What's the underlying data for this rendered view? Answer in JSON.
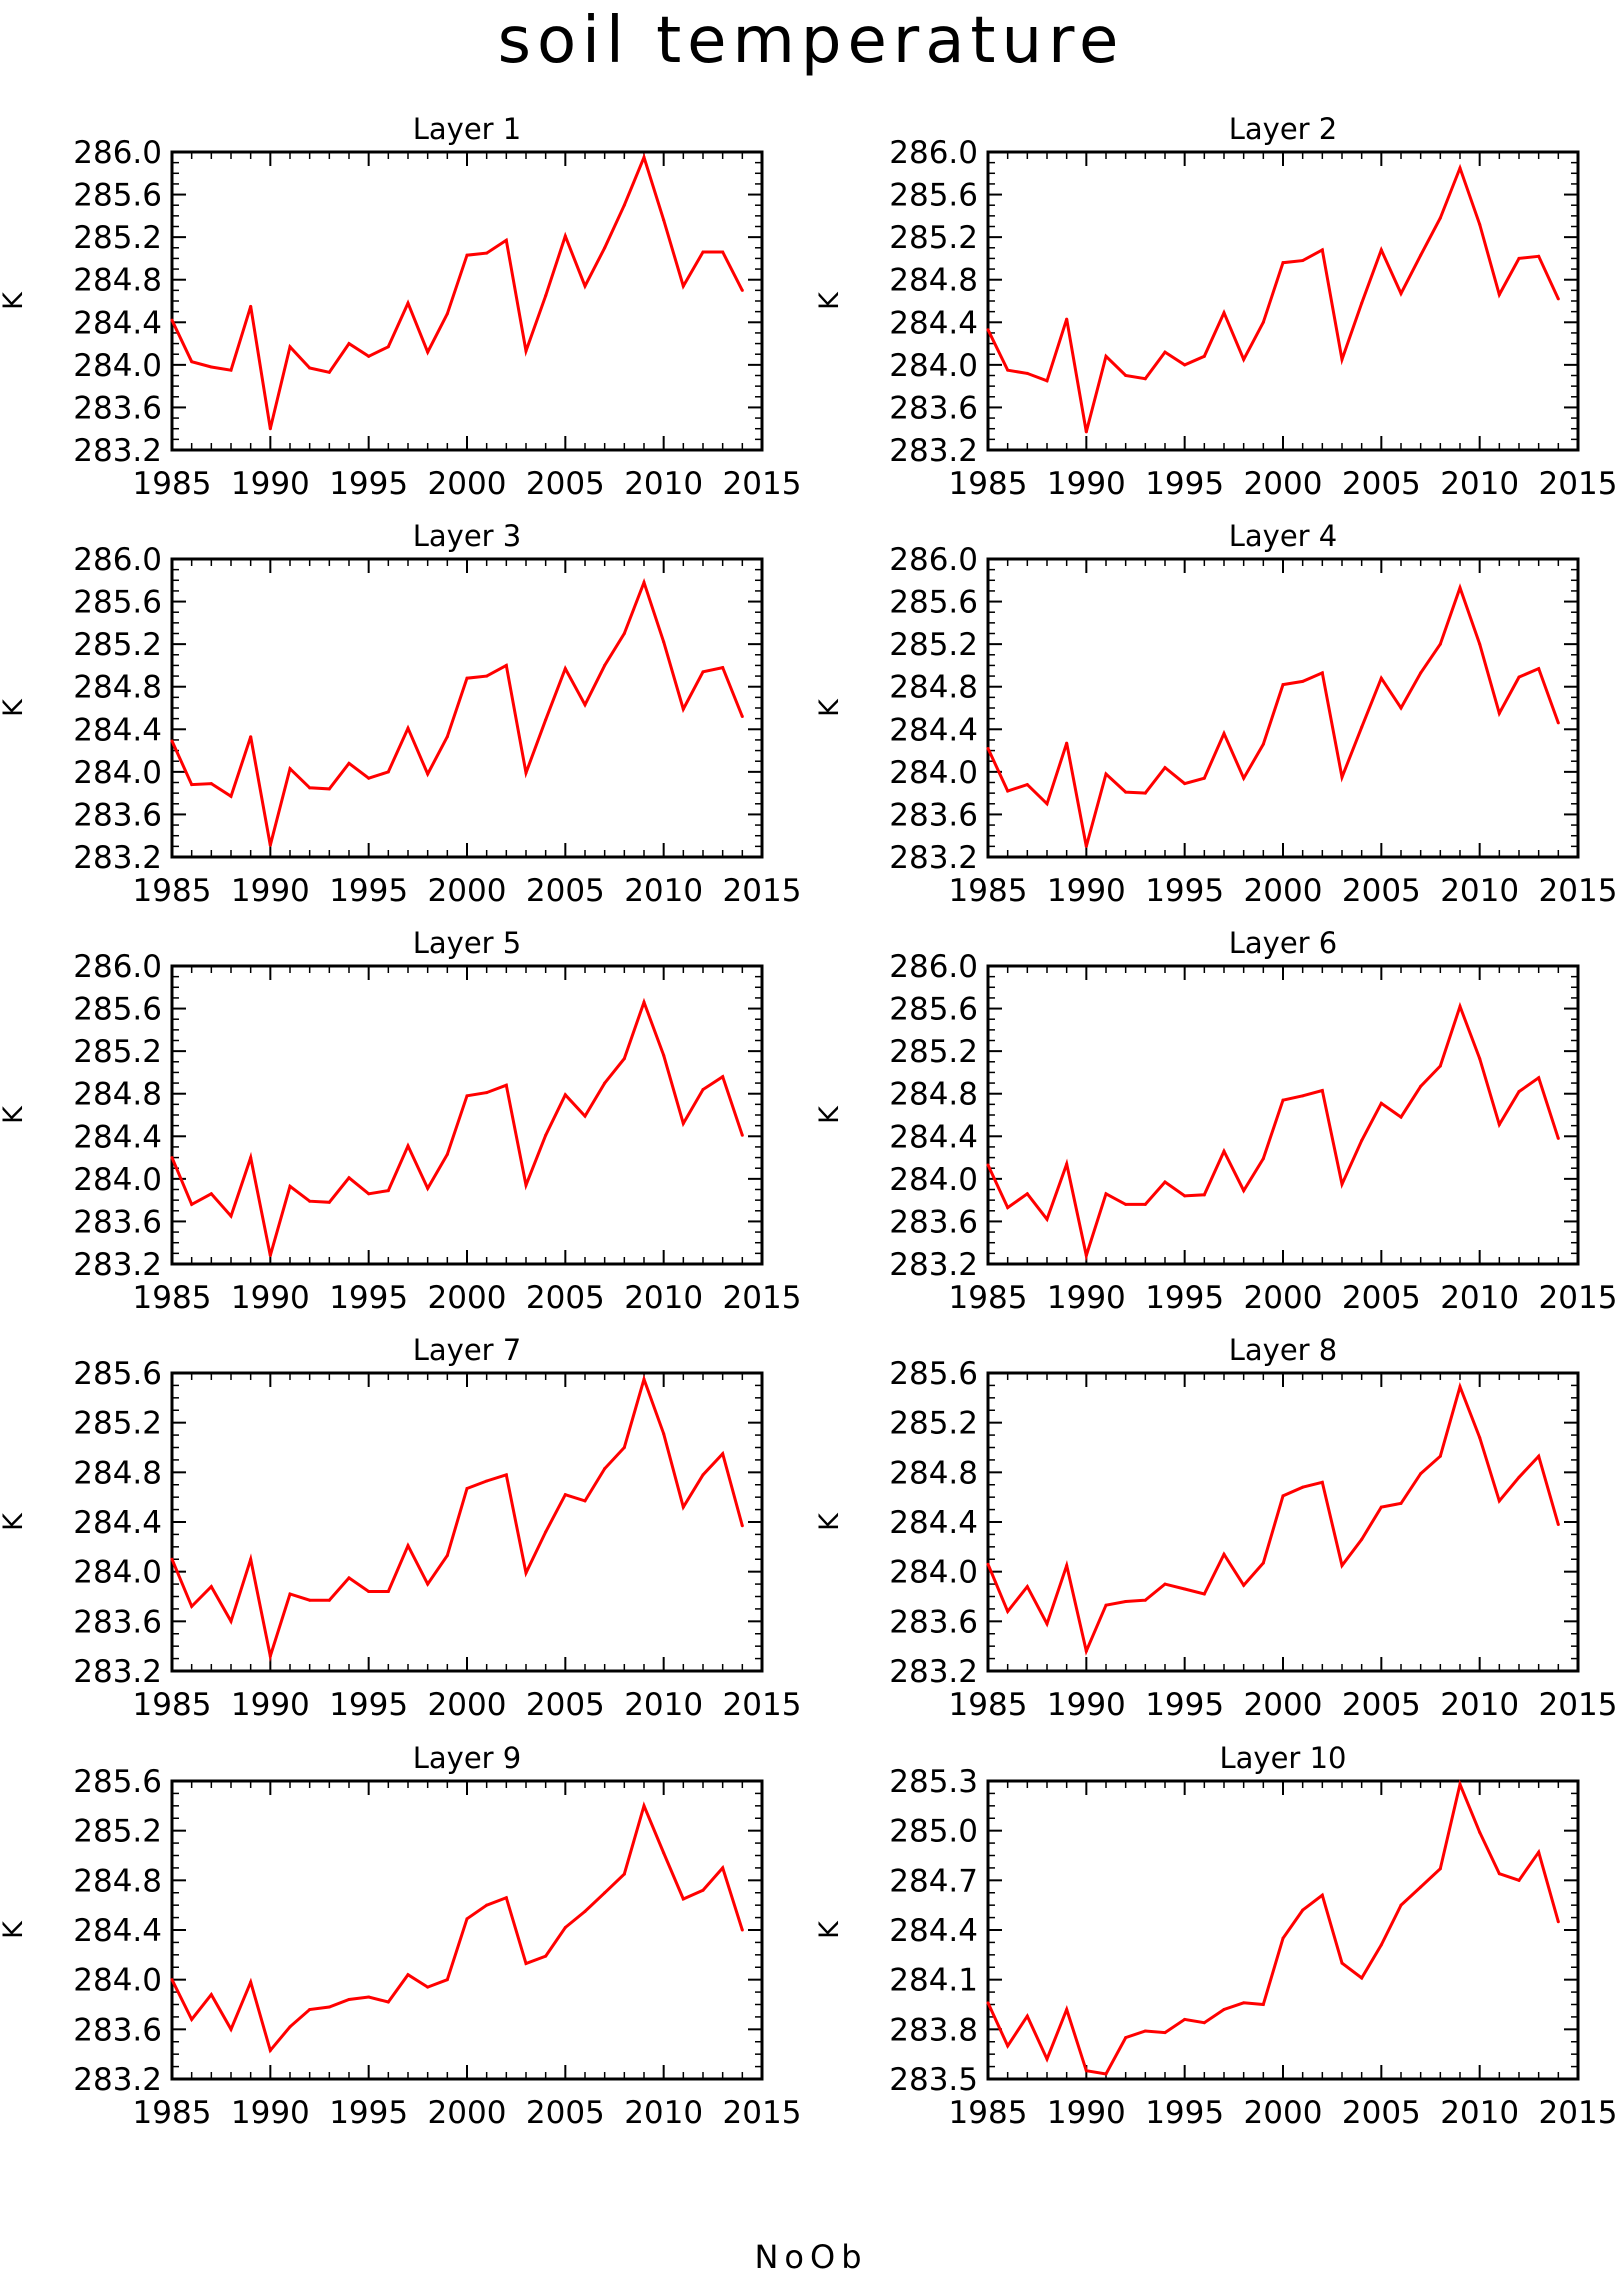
{
  "title": "soil temperature",
  "footer": "NoOb",
  "style": {
    "line_color": "#ff0000",
    "axis_color": "#000000"
  },
  "chart_data": [
    {
      "type": "line",
      "title": "Layer 1",
      "ylabel": "K",
      "xlim": [
        1985,
        2015
      ],
      "xticks": [
        1985,
        1990,
        1995,
        2000,
        2005,
        2010,
        2015
      ],
      "ylim": [
        283.2,
        286.0
      ],
      "yticks": [
        283.2,
        283.6,
        284.0,
        284.4,
        284.8,
        285.2,
        285.6,
        286.0
      ],
      "ytick_decimals": 1,
      "x": [
        1985,
        1986,
        1987,
        1988,
        1989,
        1990,
        1991,
        1992,
        1993,
        1994,
        1995,
        1996,
        1997,
        1998,
        1999,
        2000,
        2001,
        2002,
        2003,
        2004,
        2005,
        2006,
        2007,
        2008,
        2009,
        2010,
        2011,
        2012,
        2013,
        2014
      ],
      "series": [
        {
          "values": [
            284.42,
            284.03,
            283.98,
            283.95,
            284.55,
            283.4,
            284.17,
            283.97,
            283.93,
            284.2,
            284.08,
            284.17,
            284.58,
            284.12,
            284.48,
            285.03,
            285.05,
            285.17,
            284.13,
            284.65,
            285.21,
            284.74,
            285.1,
            285.5,
            285.95,
            285.36,
            284.74,
            285.06,
            285.06,
            284.7
          ]
        }
      ]
    },
    {
      "type": "line",
      "title": "Layer 2",
      "ylabel": "K",
      "xlim": [
        1985,
        2015
      ],
      "xticks": [
        1985,
        1990,
        1995,
        2000,
        2005,
        2010,
        2015
      ],
      "ylim": [
        283.2,
        286.0
      ],
      "yticks": [
        283.2,
        283.6,
        284.0,
        284.4,
        284.8,
        285.2,
        285.6,
        286.0
      ],
      "ytick_decimals": 1,
      "x": [
        1985,
        1986,
        1987,
        1988,
        1989,
        1990,
        1991,
        1992,
        1993,
        1994,
        1995,
        1996,
        1997,
        1998,
        1999,
        2000,
        2001,
        2002,
        2003,
        2004,
        2005,
        2006,
        2007,
        2008,
        2009,
        2010,
        2011,
        2012,
        2013,
        2014
      ],
      "series": [
        {
          "values": [
            284.33,
            283.95,
            283.92,
            283.85,
            284.43,
            283.37,
            284.08,
            283.9,
            283.87,
            284.12,
            284.0,
            284.08,
            284.49,
            284.05,
            284.4,
            284.96,
            284.98,
            285.08,
            284.05,
            284.58,
            285.08,
            284.67,
            285.03,
            285.38,
            285.85,
            285.32,
            284.66,
            285.0,
            285.02,
            284.62
          ]
        }
      ]
    },
    {
      "type": "line",
      "title": "Layer 3",
      "ylabel": "K",
      "xlim": [
        1985,
        2015
      ],
      "xticks": [
        1985,
        1990,
        1995,
        2000,
        2005,
        2010,
        2015
      ],
      "ylim": [
        283.2,
        286.0
      ],
      "yticks": [
        283.2,
        283.6,
        284.0,
        284.4,
        284.8,
        285.2,
        285.6,
        286.0
      ],
      "ytick_decimals": 1,
      "x": [
        1985,
        1986,
        1987,
        1988,
        1989,
        1990,
        1991,
        1992,
        1993,
        1994,
        1995,
        1996,
        1997,
        1998,
        1999,
        2000,
        2001,
        2002,
        2003,
        2004,
        2005,
        2006,
        2007,
        2008,
        2009,
        2010,
        2011,
        2012,
        2013,
        2014
      ],
      "series": [
        {
          "values": [
            284.29,
            283.88,
            283.89,
            283.77,
            284.33,
            283.31,
            284.03,
            283.85,
            283.84,
            284.08,
            283.94,
            284.0,
            284.41,
            283.98,
            284.33,
            284.88,
            284.9,
            285.0,
            283.99,
            284.49,
            284.97,
            284.63,
            285.0,
            285.3,
            285.78,
            285.22,
            284.59,
            284.94,
            284.98,
            284.52
          ]
        }
      ]
    },
    {
      "type": "line",
      "title": "Layer 4",
      "ylabel": "K",
      "xlim": [
        1985,
        2015
      ],
      "xticks": [
        1985,
        1990,
        1995,
        2000,
        2005,
        2010,
        2015
      ],
      "ylim": [
        283.2,
        286.0
      ],
      "yticks": [
        283.2,
        283.6,
        284.0,
        284.4,
        284.8,
        285.2,
        285.6,
        286.0
      ],
      "ytick_decimals": 1,
      "x": [
        1985,
        1986,
        1987,
        1988,
        1989,
        1990,
        1991,
        1992,
        1993,
        1994,
        1995,
        1996,
        1997,
        1998,
        1999,
        2000,
        2001,
        2002,
        2003,
        2004,
        2005,
        2006,
        2007,
        2008,
        2009,
        2010,
        2011,
        2012,
        2013,
        2014
      ],
      "series": [
        {
          "values": [
            284.22,
            283.82,
            283.88,
            283.7,
            284.27,
            283.3,
            283.98,
            283.81,
            283.8,
            284.04,
            283.89,
            283.94,
            284.36,
            283.94,
            284.26,
            284.82,
            284.85,
            284.93,
            283.95,
            284.42,
            284.88,
            284.6,
            284.93,
            285.2,
            285.73,
            285.2,
            284.55,
            284.89,
            284.97,
            284.46
          ]
        }
      ]
    },
    {
      "type": "line",
      "title": "Layer 5",
      "ylabel": "K",
      "xlim": [
        1985,
        2015
      ],
      "xticks": [
        1985,
        1990,
        1995,
        2000,
        2005,
        2010,
        2015
      ],
      "ylim": [
        283.2,
        286.0
      ],
      "yticks": [
        283.2,
        283.6,
        284.0,
        284.4,
        284.8,
        285.2,
        285.6,
        286.0
      ],
      "ytick_decimals": 1,
      "x": [
        1985,
        1986,
        1987,
        1988,
        1989,
        1990,
        1991,
        1992,
        1993,
        1994,
        1995,
        1996,
        1997,
        1998,
        1999,
        2000,
        2001,
        2002,
        2003,
        2004,
        2005,
        2006,
        2007,
        2008,
        2009,
        2010,
        2011,
        2012,
        2013,
        2014
      ],
      "series": [
        {
          "values": [
            284.2,
            283.76,
            283.86,
            283.65,
            284.2,
            283.28,
            283.93,
            283.79,
            283.78,
            284.01,
            283.86,
            283.89,
            284.31,
            283.91,
            284.23,
            284.78,
            284.81,
            284.88,
            283.94,
            284.41,
            284.79,
            284.59,
            284.9,
            285.13,
            285.66,
            285.16,
            284.52,
            284.84,
            284.96,
            284.41
          ]
        }
      ]
    },
    {
      "type": "line",
      "title": "Layer 6",
      "ylabel": "K",
      "xlim": [
        1985,
        2015
      ],
      "xticks": [
        1985,
        1990,
        1995,
        2000,
        2005,
        2010,
        2015
      ],
      "ylim": [
        283.2,
        286.0
      ],
      "yticks": [
        283.2,
        283.6,
        284.0,
        284.4,
        284.8,
        285.2,
        285.6,
        286.0
      ],
      "ytick_decimals": 1,
      "x": [
        1985,
        1986,
        1987,
        1988,
        1989,
        1990,
        1991,
        1992,
        1993,
        1994,
        1995,
        1996,
        1997,
        1998,
        1999,
        2000,
        2001,
        2002,
        2003,
        2004,
        2005,
        2006,
        2007,
        2008,
        2009,
        2010,
        2011,
        2012,
        2013,
        2014
      ],
      "series": [
        {
          "values": [
            284.13,
            283.73,
            283.86,
            283.62,
            284.14,
            283.28,
            283.86,
            283.76,
            283.76,
            283.97,
            283.84,
            283.85,
            284.26,
            283.89,
            284.19,
            284.74,
            284.78,
            284.83,
            283.95,
            284.36,
            284.71,
            284.58,
            284.87,
            285.06,
            285.62,
            285.13,
            284.51,
            284.82,
            284.95,
            284.38
          ]
        }
      ]
    },
    {
      "type": "line",
      "title": "Layer 7",
      "ylabel": "K",
      "xlim": [
        1985,
        2015
      ],
      "xticks": [
        1985,
        1990,
        1995,
        2000,
        2005,
        2010,
        2015
      ],
      "ylim": [
        283.2,
        285.6
      ],
      "yticks": [
        283.2,
        283.6,
        284.0,
        284.4,
        284.8,
        285.2,
        285.6
      ],
      "ytick_decimals": 1,
      "x": [
        1985,
        1986,
        1987,
        1988,
        1989,
        1990,
        1991,
        1992,
        1993,
        1994,
        1995,
        1996,
        1997,
        1998,
        1999,
        2000,
        2001,
        2002,
        2003,
        2004,
        2005,
        2006,
        2007,
        2008,
        2009,
        2010,
        2011,
        2012,
        2013,
        2014
      ],
      "series": [
        {
          "values": [
            284.1,
            283.72,
            283.88,
            283.6,
            284.1,
            283.32,
            283.82,
            283.77,
            283.77,
            283.95,
            283.84,
            283.84,
            284.21,
            283.9,
            284.13,
            284.67,
            284.73,
            284.78,
            283.99,
            284.32,
            284.62,
            284.57,
            284.83,
            285.0,
            285.55,
            285.11,
            284.52,
            284.78,
            284.95,
            284.37
          ]
        }
      ]
    },
    {
      "type": "line",
      "title": "Layer 8",
      "ylabel": "K",
      "xlim": [
        1985,
        2015
      ],
      "xticks": [
        1985,
        1990,
        1995,
        2000,
        2005,
        2010,
        2015
      ],
      "ylim": [
        283.2,
        285.6
      ],
      "yticks": [
        283.2,
        283.6,
        284.0,
        284.4,
        284.8,
        285.2,
        285.6
      ],
      "ytick_decimals": 1,
      "x": [
        1985,
        1986,
        1987,
        1988,
        1989,
        1990,
        1991,
        1992,
        1993,
        1994,
        1995,
        1996,
        1997,
        1998,
        1999,
        2000,
        2001,
        2002,
        2003,
        2004,
        2005,
        2006,
        2007,
        2008,
        2009,
        2010,
        2011,
        2012,
        2013,
        2014
      ],
      "series": [
        {
          "values": [
            284.06,
            283.68,
            283.88,
            283.58,
            284.05,
            283.36,
            283.73,
            283.76,
            283.77,
            283.9,
            283.86,
            283.82,
            284.14,
            283.89,
            284.07,
            284.61,
            284.68,
            284.72,
            284.05,
            284.26,
            284.52,
            284.55,
            284.79,
            284.93,
            285.49,
            285.08,
            284.57,
            284.76,
            284.93,
            284.38
          ]
        }
      ]
    },
    {
      "type": "line",
      "title": "Layer 9",
      "ylabel": "K",
      "xlim": [
        1985,
        2015
      ],
      "xticks": [
        1985,
        1990,
        1995,
        2000,
        2005,
        2010,
        2015
      ],
      "ylim": [
        283.2,
        285.6
      ],
      "yticks": [
        283.2,
        283.6,
        284.0,
        284.4,
        284.8,
        285.2,
        285.6
      ],
      "ytick_decimals": 1,
      "x": [
        1985,
        1986,
        1987,
        1988,
        1989,
        1990,
        1991,
        1992,
        1993,
        1994,
        1995,
        1996,
        1997,
        1998,
        1999,
        2000,
        2001,
        2002,
        2003,
        2004,
        2005,
        2006,
        2007,
        2008,
        2009,
        2010,
        2011,
        2012,
        2013,
        2014
      ],
      "series": [
        {
          "values": [
            284.0,
            283.68,
            283.88,
            283.6,
            283.98,
            283.43,
            283.62,
            283.76,
            283.78,
            283.84,
            283.86,
            283.82,
            284.04,
            283.94,
            284.0,
            284.49,
            284.6,
            284.66,
            284.13,
            284.19,
            284.42,
            284.55,
            284.7,
            284.85,
            285.4,
            285.02,
            284.65,
            284.72,
            284.9,
            284.4
          ]
        }
      ]
    },
    {
      "type": "line",
      "title": "Layer 10",
      "ylabel": "K",
      "xlim": [
        1985,
        2015
      ],
      "xticks": [
        1985,
        1990,
        1995,
        2000,
        2005,
        2010,
        2015
      ],
      "ylim": [
        283.5,
        285.3
      ],
      "yticks": [
        283.5,
        283.8,
        284.1,
        284.4,
        284.7,
        285.0,
        285.3
      ],
      "ytick_decimals": 1,
      "x": [
        1985,
        1986,
        1987,
        1988,
        1989,
        1990,
        1991,
        1992,
        1993,
        1994,
        1995,
        1996,
        1997,
        1998,
        1999,
        2000,
        2001,
        2002,
        2003,
        2004,
        2005,
        2006,
        2007,
        2008,
        2009,
        2010,
        2011,
        2012,
        2013,
        2014
      ],
      "series": [
        {
          "values": [
            283.96,
            283.7,
            283.88,
            283.62,
            283.92,
            283.55,
            283.53,
            283.75,
            283.79,
            283.78,
            283.86,
            283.84,
            283.92,
            283.96,
            283.95,
            284.35,
            284.52,
            284.61,
            284.2,
            284.11,
            284.31,
            284.55,
            284.66,
            284.77,
            285.28,
            284.99,
            284.74,
            284.7,
            284.87,
            284.45
          ]
        }
      ]
    }
  ]
}
